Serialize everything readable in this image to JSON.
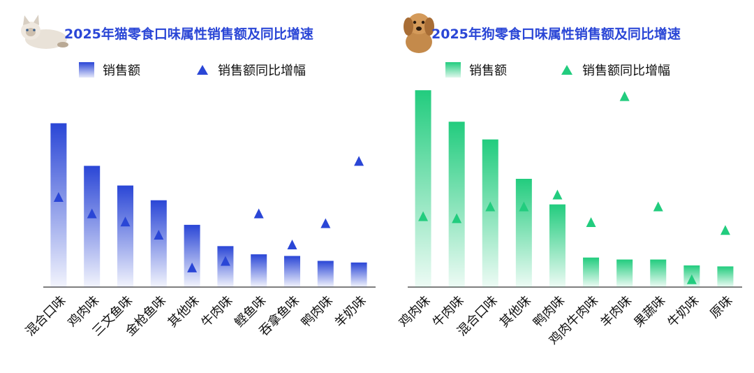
{
  "chart_data": [
    {
      "type": "bar",
      "title": "2025年猫零食口味属性销售额及同比增速",
      "categories": [
        "混合口味",
        "鸡肉味",
        "三文鱼味",
        "金枪鱼味",
        "其他味",
        "牛肉味",
        "鲣鱼味",
        "吞拿鱼味",
        "鸭肉味",
        "羊奶味"
      ],
      "series": [
        {
          "name": "销售额",
          "type": "bar",
          "values": [
            100,
            74,
            62,
            53,
            38,
            25,
            20,
            19,
            16,
            15
          ]
        },
        {
          "name": "销售额同比增幅",
          "type": "scatter",
          "marker": "triangle",
          "values": [
            55,
            45,
            40,
            32,
            12,
            16,
            45,
            26,
            39,
            77
          ]
        }
      ],
      "ylim": [
        0,
        110
      ],
      "color": "#2a46d6",
      "legend": "top",
      "grid": false
    },
    {
      "type": "bar",
      "title": "2025年狗零食口味属性销售额及同比增速",
      "categories": [
        "鸡肉味",
        "牛肉味",
        "混合口味",
        "其他味",
        "鸭肉味",
        "鸡肉牛肉味",
        "羊肉味",
        "果蔬味",
        "牛奶味",
        "原味"
      ],
      "series": [
        {
          "name": "销售额",
          "type": "bar",
          "values": [
            100,
            84,
            75,
            55,
            42,
            15,
            14,
            14,
            11,
            10.5
          ]
        },
        {
          "name": "销售额同比增幅",
          "type": "scatter",
          "marker": "triangle",
          "values": [
            36,
            35,
            41,
            41,
            47,
            33,
            97,
            41,
            4,
            29
          ]
        }
      ],
      "ylim": [
        0,
        110
      ],
      "color": "#22cc7e",
      "legend": "top",
      "grid": false
    }
  ]
}
